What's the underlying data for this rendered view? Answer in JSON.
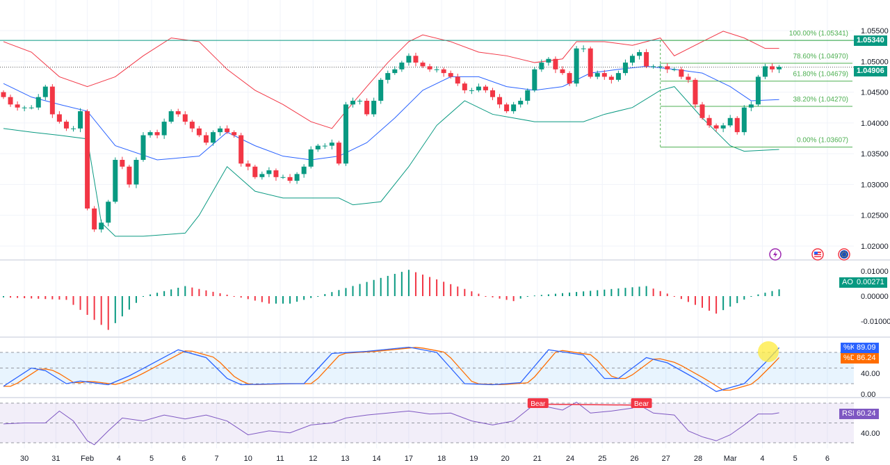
{
  "chart_data": {
    "type": "candlestick",
    "colors": {
      "up": "#089981",
      "down": "#f23645",
      "bb_upper": "#f23645",
      "bb_lower": "#089981",
      "bb_mid": "#2962ff",
      "fib": "#4caf50",
      "k": "#2962ff",
      "d": "#ff6d00",
      "rsi": "#7e57c2"
    },
    "price_axis": {
      "min": 1.018,
      "max": 1.056,
      "ticks": [
        "1.05500",
        "1.05000",
        "1.04500",
        "1.04000",
        "1.03500",
        "1.03000",
        "1.02500",
        "1.02000"
      ]
    },
    "first_open": 1.045,
    "closes": [
      1.0442,
      1.043,
      1.0425,
      1.0425,
      1.0425,
      1.0442,
      1.0459,
      1.0414,
      1.0402,
      1.0391,
      1.0391,
      1.0419,
      1.0261,
      1.0227,
      1.0238,
      1.0272,
      1.034,
      1.0329,
      1.03,
      1.034,
      1.038,
      1.0385,
      1.038,
      1.0402,
      1.0419,
      1.0414,
      1.0402,
      1.0391,
      1.038,
      1.0368,
      1.0385,
      1.0391,
      1.0385,
      1.038,
      1.0334,
      1.0329,
      1.0312,
      1.0317,
      1.0323,
      1.0312,
      1.0312,
      1.0306,
      1.0317,
      1.0329,
      1.0357,
      1.0363,
      1.0363,
      1.0368,
      1.0334,
      1.043,
      1.0436,
      1.0436,
      1.0414,
      1.0436,
      1.047,
      1.0481,
      1.0487,
      1.0498,
      1.0509,
      1.0498,
      1.0492,
      1.0487,
      1.0487,
      1.0481,
      1.0475,
      1.0464,
      1.0453,
      1.0453,
      1.0459,
      1.0453,
      1.0442,
      1.043,
      1.0419,
      1.043,
      1.0436,
      1.0453,
      1.0487,
      1.0498,
      1.0504,
      1.0487,
      1.0481,
      1.0464,
      1.0521,
      1.0521,
      1.0475,
      1.0481,
      1.0475,
      1.047,
      1.0481,
      1.0498,
      1.0509,
      1.0515,
      1.0492,
      1.0492,
      1.0492,
      1.0487,
      1.0487,
      1.0475,
      1.047,
      1.043,
      1.0408,
      1.0396,
      1.0391,
      1.0396,
      1.0408,
      1.0385,
      1.0425,
      1.043,
      1.0475,
      1.0492,
      1.0487,
      1.0491
    ],
    "bollinger": {
      "upper": [
        [
          0,
          1.0532
        ],
        [
          4,
          1.0515
        ],
        [
          8,
          1.0475
        ],
        [
          12,
          1.0459
        ],
        [
          16,
          1.0475
        ],
        [
          20,
          1.0509
        ],
        [
          24,
          1.0538
        ],
        [
          28,
          1.0532
        ],
        [
          32,
          1.0487
        ],
        [
          36,
          1.0453
        ],
        [
          40,
          1.043
        ],
        [
          44,
          1.0402
        ],
        [
          47,
          1.0391
        ],
        [
          49,
          1.0419
        ],
        [
          52,
          1.0459
        ],
        [
          55,
          1.0498
        ],
        [
          58,
          1.0532
        ],
        [
          60,
          1.0543
        ],
        [
          64,
          1.0532
        ],
        [
          68,
          1.0515
        ],
        [
          72,
          1.0509
        ],
        [
          76,
          1.0498
        ],
        [
          80,
          1.0504
        ],
        [
          82,
          1.0532
        ],
        [
          86,
          1.0532
        ],
        [
          90,
          1.0526
        ],
        [
          94,
          1.0538
        ],
        [
          96,
          1.0509
        ],
        [
          100,
          1.0532
        ],
        [
          103,
          1.0549
        ],
        [
          106,
          1.0538
        ],
        [
          109,
          1.0521
        ],
        [
          111,
          1.0521
        ]
      ],
      "middle": [
        [
          0,
          1.0464
        ],
        [
          4,
          1.0442
        ],
        [
          8,
          1.043
        ],
        [
          12,
          1.0419
        ],
        [
          16,
          1.0363
        ],
        [
          22,
          1.034
        ],
        [
          28,
          1.0346
        ],
        [
          32,
          1.0385
        ],
        [
          36,
          1.0363
        ],
        [
          40,
          1.0346
        ],
        [
          44,
          1.034
        ],
        [
          48,
          1.0346
        ],
        [
          52,
          1.0368
        ],
        [
          56,
          1.0408
        ],
        [
          60,
          1.0453
        ],
        [
          64,
          1.0475
        ],
        [
          68,
          1.0475
        ],
        [
          72,
          1.0459
        ],
        [
          76,
          1.0453
        ],
        [
          80,
          1.0459
        ],
        [
          84,
          1.0481
        ],
        [
          88,
          1.0487
        ],
        [
          92,
          1.0492
        ],
        [
          96,
          1.0487
        ],
        [
          100,
          1.0481
        ],
        [
          104,
          1.0459
        ],
        [
          107,
          1.0436
        ],
        [
          111,
          1.0438
        ]
      ],
      "lower": [
        [
          0,
          1.0391
        ],
        [
          4,
          1.0385
        ],
        [
          8,
          1.038
        ],
        [
          12,
          1.0374
        ],
        [
          14,
          1.0238
        ],
        [
          16,
          1.0216
        ],
        [
          20,
          1.0216
        ],
        [
          26,
          1.0221
        ],
        [
          28,
          1.025
        ],
        [
          32,
          1.0329
        ],
        [
          36,
          1.0289
        ],
        [
          40,
          1.0278
        ],
        [
          44,
          1.0278
        ],
        [
          48,
          1.0278
        ],
        [
          50,
          1.0267
        ],
        [
          54,
          1.0272
        ],
        [
          58,
          1.0329
        ],
        [
          62,
          1.0396
        ],
        [
          66,
          1.0436
        ],
        [
          70,
          1.0414
        ],
        [
          76,
          1.0402
        ],
        [
          80,
          1.0402
        ],
        [
          83,
          1.0402
        ],
        [
          86,
          1.0414
        ],
        [
          90,
          1.0425
        ],
        [
          94,
          1.0453
        ],
        [
          96,
          1.0459
        ],
        [
          100,
          1.0408
        ],
        [
          104,
          1.0363
        ],
        [
          106,
          1.0354
        ],
        [
          111,
          1.0357
        ]
      ]
    },
    "horizontal_line": {
      "value": 1.0534,
      "label": "1.05340"
    },
    "last_price": {
      "value": 1.04906,
      "label": "1.04906"
    },
    "fibonacci": {
      "start_index": 94,
      "levels": [
        {
          "label": "100.00% (1.05341)",
          "value": 1.05341
        },
        {
          "label": "78.60% (1.04970)",
          "value": 1.0497
        },
        {
          "label": "61.80% (1.04679)",
          "value": 1.04679
        },
        {
          "label": "38.20% (1.04270)",
          "value": 1.0427
        },
        {
          "label": "0.00% (1.03607)",
          "value": 1.03607
        }
      ]
    },
    "ao": {
      "label": "AO",
      "value": "0.00271",
      "axis": {
        "min": -0.016,
        "max": 0.012,
        "ticks": [
          "0.01000",
          "0.00000",
          "-0.01000"
        ]
      },
      "keypoints": [
        [
          0,
          -0.0005
        ],
        [
          9,
          -0.0015
        ],
        [
          15,
          -0.0135
        ],
        [
          20,
          0.0
        ],
        [
          26,
          0.004
        ],
        [
          33,
          0.0
        ],
        [
          38,
          -0.003
        ],
        [
          41,
          -0.003
        ],
        [
          45,
          0.0
        ],
        [
          58,
          0.0105
        ],
        [
          69,
          0.0
        ],
        [
          73,
          -0.002
        ],
        [
          75,
          0.0
        ],
        [
          92,
          0.004
        ],
        [
          96,
          0.0
        ],
        [
          102,
          -0.007
        ],
        [
          107,
          0.0
        ],
        [
          111,
          0.0027
        ]
      ]
    },
    "stoch": {
      "k_label": "%K",
      "k_value": "89.09",
      "d_label": "%D",
      "d_value": "86.24",
      "ticks": [
        "40.00",
        "0.00"
      ],
      "upper_band": 80,
      "lower_band": 20,
      "k_keypoints": [
        [
          0,
          15
        ],
        [
          4,
          50
        ],
        [
          6,
          45
        ],
        [
          9,
          20
        ],
        [
          11,
          25
        ],
        [
          15,
          18
        ],
        [
          18,
          35
        ],
        [
          25,
          85
        ],
        [
          29,
          70
        ],
        [
          32,
          30
        ],
        [
          34,
          18
        ],
        [
          40,
          20
        ],
        [
          43,
          20
        ],
        [
          47,
          78
        ],
        [
          52,
          82
        ],
        [
          58,
          90
        ],
        [
          62,
          80
        ],
        [
          66,
          20
        ],
        [
          70,
          18
        ],
        [
          74,
          22
        ],
        [
          78,
          85
        ],
        [
          83,
          75
        ],
        [
          86,
          30
        ],
        [
          88,
          30
        ],
        [
          92,
          70
        ],
        [
          95,
          60
        ],
        [
          99,
          30
        ],
        [
          102,
          5
        ],
        [
          106,
          20
        ],
        [
          109,
          60
        ],
        [
          111,
          89
        ]
      ]
    },
    "rsi": {
      "label": "RSI",
      "value": "60.24",
      "ticks": [
        "40.00"
      ],
      "upper_band": 70,
      "lower_band": 30,
      "keypoints": [
        [
          0,
          49
        ],
        [
          3,
          50
        ],
        [
          6,
          50
        ],
        [
          8,
          62
        ],
        [
          10,
          52
        ],
        [
          12,
          32
        ],
        [
          13,
          28
        ],
        [
          15,
          42
        ],
        [
          17,
          55
        ],
        [
          20,
          52
        ],
        [
          23,
          58
        ],
        [
          26,
          54
        ],
        [
          29,
          58
        ],
        [
          32,
          52
        ],
        [
          35,
          38
        ],
        [
          38,
          42
        ],
        [
          41,
          40
        ],
        [
          44,
          48
        ],
        [
          47,
          50
        ],
        [
          49,
          55
        ],
        [
          52,
          58
        ],
        [
          55,
          60
        ],
        [
          58,
          62
        ],
        [
          61,
          59
        ],
        [
          64,
          60
        ],
        [
          67,
          52
        ],
        [
          70,
          48
        ],
        [
          73,
          52
        ],
        [
          76,
          69
        ],
        [
          78,
          66
        ],
        [
          80,
          63
        ],
        [
          82,
          71
        ],
        [
          84,
          60
        ],
        [
          87,
          62
        ],
        [
          90,
          65
        ],
        [
          91,
          68
        ],
        [
          93,
          60
        ],
        [
          96,
          58
        ],
        [
          98,
          42
        ],
        [
          100,
          36
        ],
        [
          102,
          32
        ],
        [
          104,
          38
        ],
        [
          106,
          48
        ],
        [
          108,
          59
        ],
        [
          110,
          59
        ],
        [
          111,
          60.24
        ]
      ],
      "divergence": {
        "label_1": "Bear",
        "label_2": "Bear",
        "from": [
          76,
          69
        ],
        "to": [
          91,
          68
        ]
      }
    },
    "time_axis": [
      {
        "label": "30",
        "index": 3
      },
      {
        "label": "31",
        "index": 7.5
      },
      {
        "label": "Feb",
        "index": 12
      },
      {
        "label": "4",
        "index": 16.5
      },
      {
        "label": "5",
        "index": 21.2
      },
      {
        "label": "6",
        "index": 25.8
      },
      {
        "label": "7",
        "index": 30.5
      },
      {
        "label": "10",
        "index": 35
      },
      {
        "label": "11",
        "index": 39.6
      },
      {
        "label": "12",
        "index": 44.3
      },
      {
        "label": "13",
        "index": 48.9
      },
      {
        "label": "14",
        "index": 53.4
      },
      {
        "label": "17",
        "index": 58
      },
      {
        "label": "18",
        "index": 62.7
      },
      {
        "label": "19",
        "index": 67.3
      },
      {
        "label": "20",
        "index": 71.8
      },
      {
        "label": "21",
        "index": 76.4
      },
      {
        "label": "24",
        "index": 81.1
      },
      {
        "label": "25",
        "index": 85.7
      },
      {
        "label": "26",
        "index": 90.3
      },
      {
        "label": "27",
        "index": 94.8
      },
      {
        "label": "28",
        "index": 99.4
      },
      {
        "label": "Mar",
        "index": 104
      },
      {
        "label": "4",
        "index": 108.6
      },
      {
        "label": "5",
        "index": 113.3
      },
      {
        "label": "6",
        "index": 117.9
      }
    ],
    "icons": [
      "lightning-icon",
      "us-flag-icon",
      "eu-flag-icon"
    ]
  }
}
